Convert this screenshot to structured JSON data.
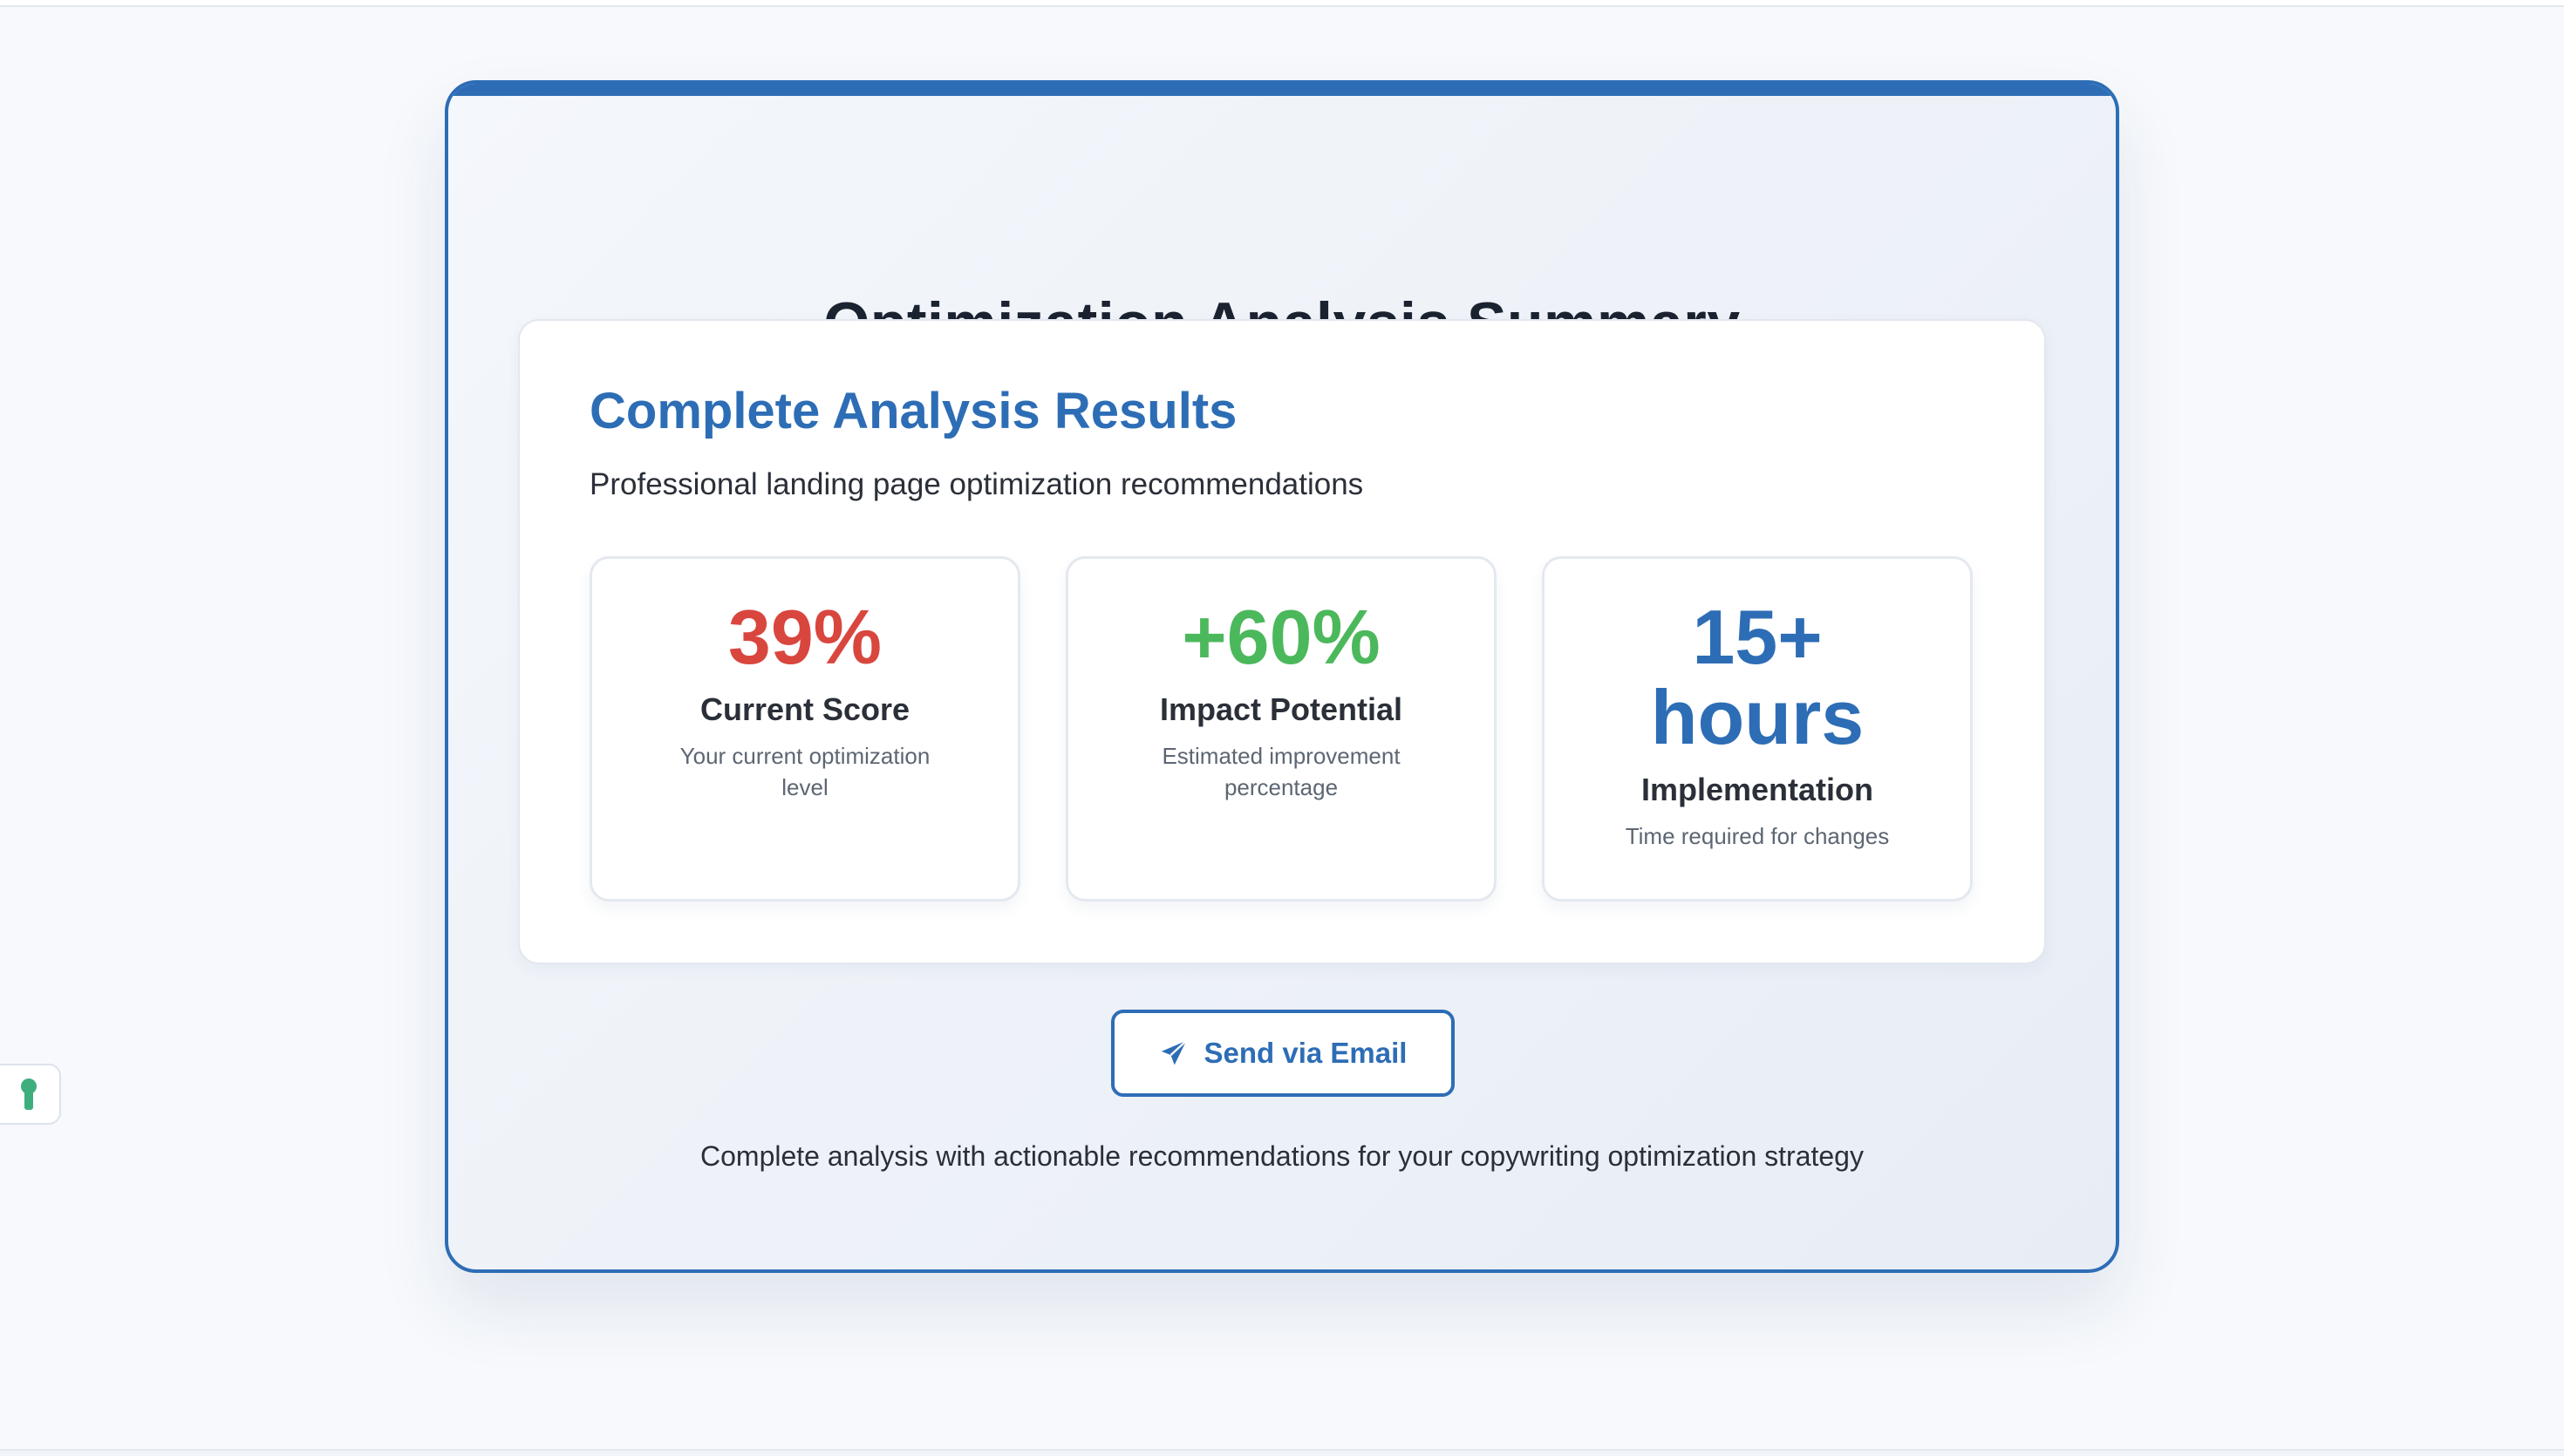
{
  "summary": {
    "title": "Optimization Analysis Summary"
  },
  "results": {
    "title": "Complete Analysis Results",
    "subtitle": "Professional landing page optimization recommendations",
    "metrics": [
      {
        "value": "39%",
        "label": "Current Score",
        "description": "Your current optimization level",
        "color": "#d9463e"
      },
      {
        "value": "+60%",
        "label": "Impact Potential",
        "description": "Estimated improvement percentage",
        "color": "#4cb85c"
      },
      {
        "value": "15+ hours",
        "label": "Implementation",
        "description": "Time required for changes",
        "color": "#2d6db5"
      }
    ]
  },
  "actions": {
    "email_button_label": "Send via Email",
    "email_icon": "paper-plane-icon"
  },
  "footer": {
    "note": "Complete analysis with actionable recommendations for your copywriting optimization strategy"
  },
  "side_tab": {
    "icon": "keyhole-icon",
    "icon_color": "#3fae7e"
  },
  "theme": {
    "accent": "#2d6db5",
    "page_background": "#f7f9fc"
  }
}
